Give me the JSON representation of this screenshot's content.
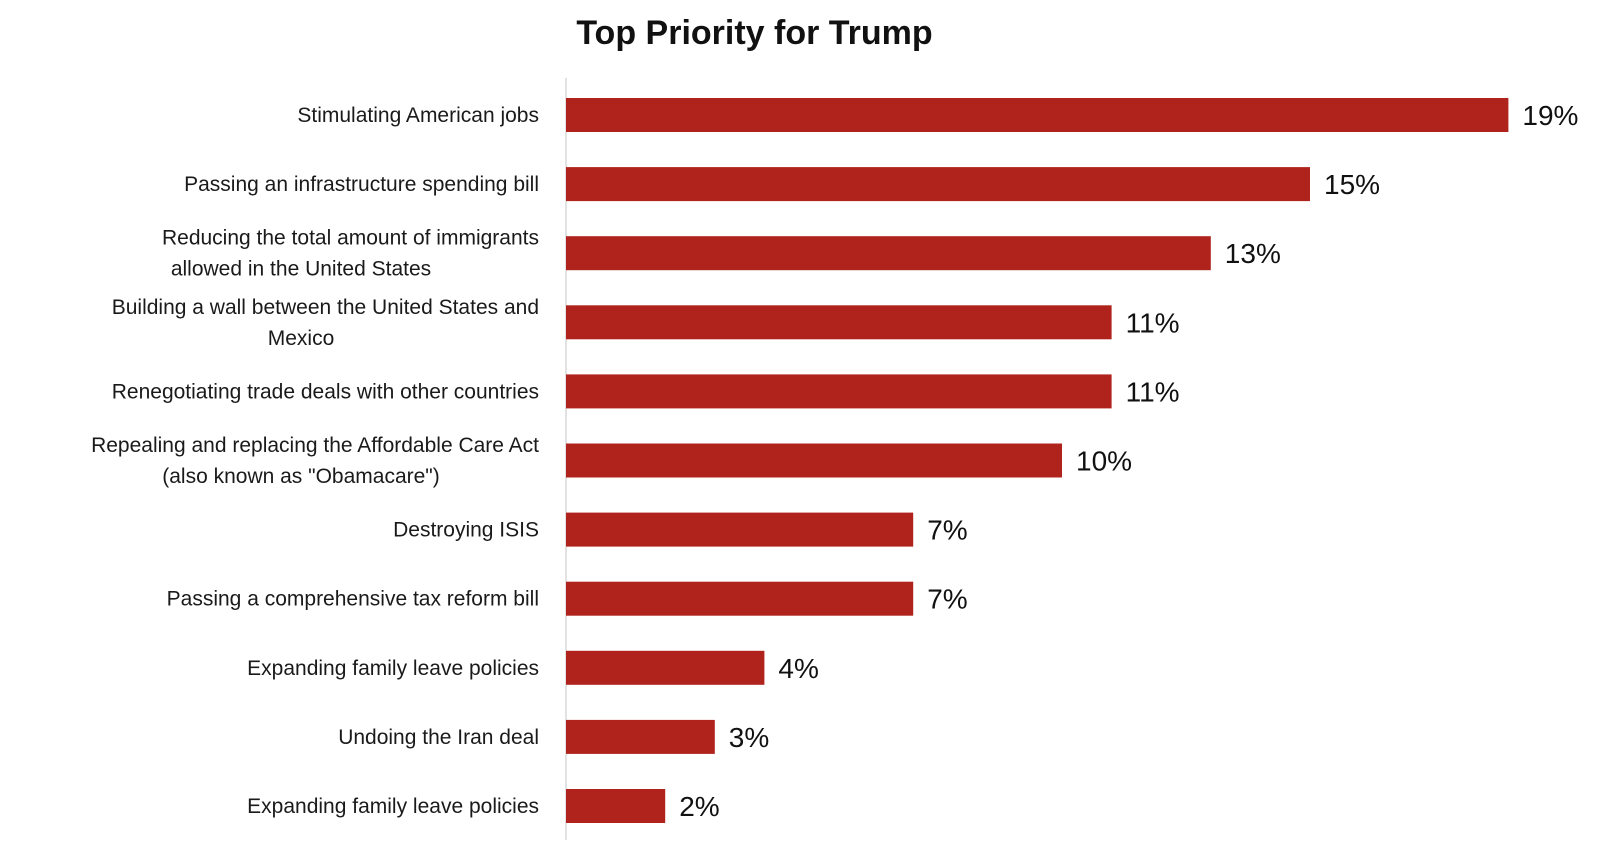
{
  "chart_data": {
    "type": "bar",
    "orientation": "horizontal",
    "title": "Top Priority for Trump",
    "categories": [
      [
        "Stimulating American jobs"
      ],
      [
        "Passing an infrastructure spending bill"
      ],
      [
        "Reducing the total amount of immigrants",
        "allowed in the United States"
      ],
      [
        "Building a wall between the United States and",
        "Mexico"
      ],
      [
        "Renegotiating trade deals with other countries"
      ],
      [
        "Repealing and replacing the Affordable Care Act",
        "(also known as \"Obamacare\")"
      ],
      [
        "Destroying ISIS"
      ],
      [
        "Passing a comprehensive tax reform bill"
      ],
      [
        "Expanding family leave policies"
      ],
      [
        "Undoing the Iran deal"
      ],
      [
        "Expanding family leave policies"
      ]
    ],
    "values": [
      19,
      15,
      13,
      11,
      11,
      10,
      7,
      7,
      4,
      3,
      2
    ],
    "value_labels": [
      "19%",
      "15%",
      "13%",
      "11%",
      "11%",
      "10%",
      "7%",
      "7%",
      "4%",
      "3%",
      "2%"
    ],
    "bar_color": "#b0231d",
    "axis_color": "#d9d9d9",
    "xlabel": "",
    "ylabel": "",
    "grid": false,
    "legend": false
  }
}
